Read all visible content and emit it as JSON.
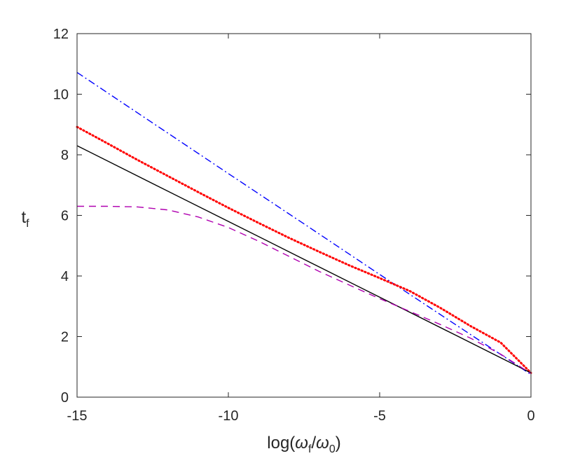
{
  "chart_data": {
    "type": "line",
    "title": "",
    "xlabel": "log(ω_f/ω_0)",
    "ylabel": "t_f",
    "xlim": [
      -15,
      0
    ],
    "ylim": [
      0,
      12
    ],
    "xticks": [
      -15,
      -10,
      -5,
      0
    ],
    "xtick_labels": [
      "-15",
      "-10",
      "-5",
      "0"
    ],
    "yticks": [
      0,
      2,
      4,
      6,
      8,
      10,
      12
    ],
    "ytick_labels": [
      "0",
      "2",
      "4",
      "6",
      "8",
      "10",
      "12"
    ],
    "grid": false,
    "legend": "none",
    "series": [
      {
        "color": "#0000ff",
        "style": "dashdot",
        "x": [
          -15,
          -12.5,
          -10,
          -7.5,
          -5,
          -2.5,
          0
        ],
        "y": [
          10.72,
          9.05,
          7.38,
          5.72,
          4.05,
          2.4,
          0.75
        ]
      },
      {
        "color": "#ff0000",
        "style": "dotted",
        "x": [
          -15,
          -14,
          -13,
          -12,
          -11,
          -10,
          -9,
          -8,
          -7,
          -6,
          -5,
          -4,
          -3,
          -2,
          -1,
          0
        ],
        "y": [
          8.92,
          8.38,
          7.83,
          7.3,
          6.77,
          6.25,
          5.75,
          5.26,
          4.8,
          4.35,
          3.93,
          3.5,
          2.95,
          2.35,
          1.8,
          0.8
        ]
      },
      {
        "color": "#000000",
        "style": "solid",
        "x": [
          -15,
          -12.5,
          -10,
          -7.5,
          -5,
          -2.5,
          0
        ],
        "y": [
          8.3,
          7.05,
          5.8,
          4.55,
          3.3,
          2.05,
          0.8
        ]
      },
      {
        "color": "#b000b0",
        "style": "dashed",
        "x": [
          -15,
          -14,
          -13,
          -12,
          -11,
          -10,
          -9,
          -8,
          -7,
          -6,
          -5,
          -4,
          -3,
          -2,
          -1,
          0
        ],
        "y": [
          6.3,
          6.3,
          6.28,
          6.18,
          5.95,
          5.6,
          5.15,
          4.65,
          4.15,
          3.7,
          3.25,
          2.83,
          2.4,
          1.95,
          1.42,
          0.78
        ]
      }
    ]
  }
}
